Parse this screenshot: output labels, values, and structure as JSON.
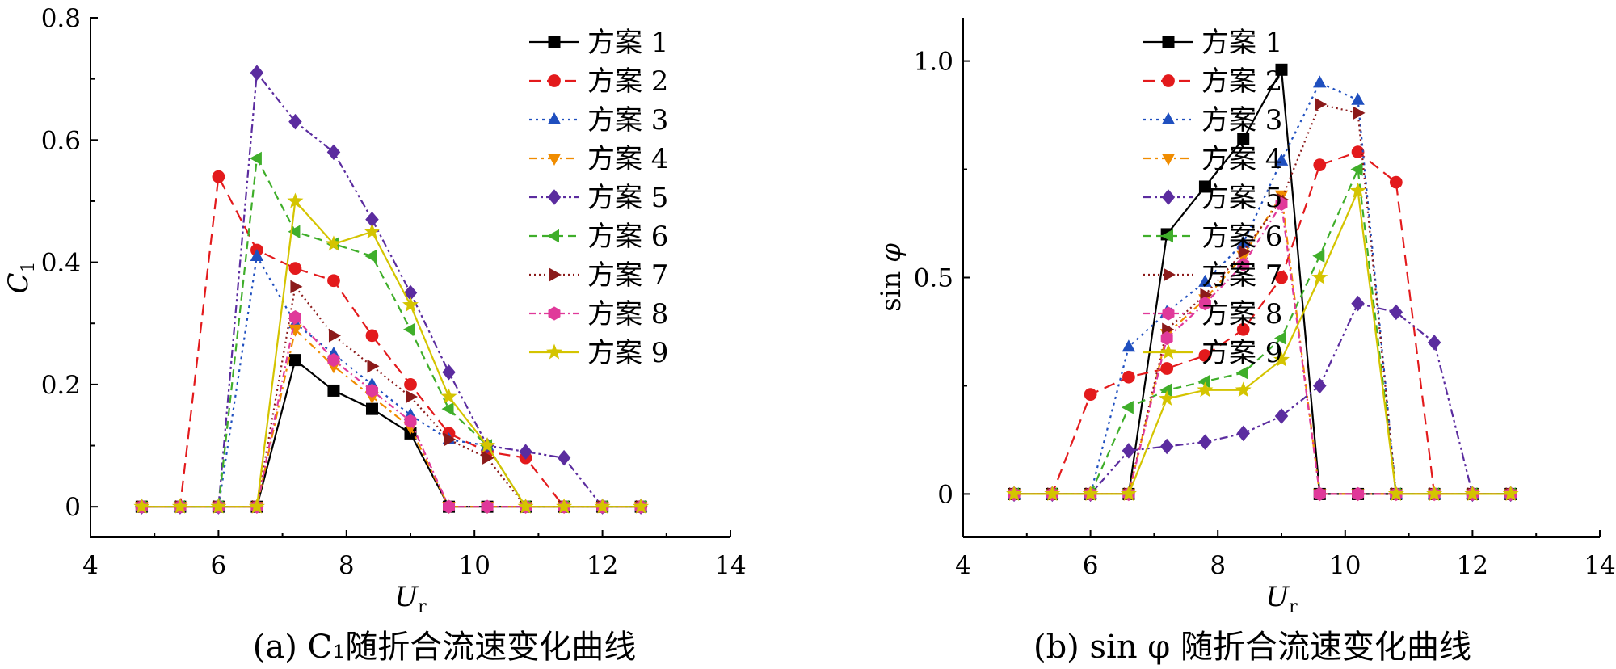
{
  "chart_data": [
    {
      "type": "line",
      "caption": "(a)  C₁随折合流速变化曲线",
      "xlabel": "Ur",
      "ylabel": "C1",
      "xlim": [
        4,
        14
      ],
      "ylim": [
        -0.05,
        0.8
      ],
      "xticks": [
        "4",
        "6",
        "8",
        "10",
        "12",
        "14"
      ],
      "yticks": [
        "0",
        "0.2",
        "0.4",
        "0.6",
        "0.8"
      ],
      "legend_position": "top-right",
      "x": [
        4.8,
        5.4,
        6.0,
        6.6,
        7.2,
        7.8,
        8.4,
        9.0,
        9.6,
        10.2,
        10.8,
        11.4,
        12.0,
        12.6
      ],
      "series": [
        {
          "name": "方案 1",
          "color": "#000000",
          "marker": "square",
          "dash": "",
          "values": [
            0,
            0,
            0,
            0,
            0.24,
            0.19,
            0.16,
            0.12,
            0,
            0,
            0,
            0,
            0,
            0
          ]
        },
        {
          "name": "方案 2",
          "color": "#e31a1c",
          "marker": "circle",
          "dash": "14,8",
          "values": [
            0,
            0,
            0.54,
            0.42,
            0.39,
            0.37,
            0.28,
            0.2,
            0.12,
            0.09,
            0.08,
            0,
            0,
            0
          ]
        },
        {
          "name": "方案 3",
          "color": "#1f4fbf",
          "marker": "triangle-up",
          "dash": "3,5",
          "values": [
            0,
            0,
            0,
            0.41,
            0.3,
            0.25,
            0.2,
            0.15,
            0.11,
            0.1,
            0,
            0,
            0,
            0
          ]
        },
        {
          "name": "方案 4",
          "color": "#f08c00",
          "marker": "triangle-down",
          "dash": "10,5,3,5",
          "values": [
            0,
            0,
            0,
            0,
            0.29,
            0.23,
            0.18,
            0.13,
            0,
            0,
            0,
            0,
            0,
            0
          ]
        },
        {
          "name": "方案 5",
          "color": "#5b2c9f",
          "marker": "diamond",
          "dash": "10,4,3,4,3,4",
          "values": [
            0,
            0,
            0,
            0.71,
            0.63,
            0.58,
            0.47,
            0.35,
            0.22,
            0.1,
            0.09,
            0.08,
            0,
            0
          ]
        },
        {
          "name": "方案 6",
          "color": "#3fae2a",
          "marker": "triangle-left",
          "dash": "10,6",
          "values": [
            0,
            0,
            0,
            0.57,
            0.45,
            0.43,
            0.41,
            0.29,
            0.16,
            0.1,
            0,
            0,
            0,
            0
          ]
        },
        {
          "name": "方案 7",
          "color": "#8b1a1a",
          "marker": "triangle-right",
          "dash": "2,4",
          "values": [
            0,
            0,
            0,
            0,
            0.36,
            0.28,
            0.23,
            0.18,
            0.11,
            0.08,
            0,
            0,
            0,
            0
          ]
        },
        {
          "name": "方案 8",
          "color": "#e0399a",
          "marker": "hexagon",
          "dash": "8,4,2,4",
          "values": [
            0,
            0,
            0,
            0,
            0.31,
            0.24,
            0.19,
            0.14,
            0,
            0,
            0,
            0,
            0,
            0
          ]
        },
        {
          "name": "方案 9",
          "color": "#d4c400",
          "marker": "star",
          "dash": "",
          "values": [
            0,
            0,
            0,
            0,
            0.5,
            0.43,
            0.45,
            0.33,
            0.18,
            0.1,
            0,
            0,
            0,
            0
          ]
        }
      ]
    },
    {
      "type": "line",
      "caption": "(b)  sin φ 随折合流速变化曲线",
      "xlabel": "Ur",
      "ylabel": "sin φ",
      "xlim": [
        4,
        14
      ],
      "ylim": [
        -0.1,
        1.1
      ],
      "xticks": [
        "4",
        "6",
        "8",
        "10",
        "12",
        "14"
      ],
      "yticks": [
        "0",
        "0.5",
        "1.0"
      ],
      "legend_position": "top-right",
      "x": [
        4.8,
        5.4,
        6.0,
        6.6,
        7.2,
        7.8,
        8.4,
        9.0,
        9.6,
        10.2,
        10.8,
        11.4,
        12.0,
        12.6
      ],
      "series": [
        {
          "name": "方案 1",
          "color": "#000000",
          "marker": "square",
          "dash": "",
          "values": [
            0,
            0,
            0,
            0,
            0.6,
            0.71,
            0.82,
            0.98,
            0,
            0,
            0,
            0,
            0,
            0
          ]
        },
        {
          "name": "方案 2",
          "color": "#e31a1c",
          "marker": "circle",
          "dash": "14,8",
          "values": [
            0,
            0,
            0.23,
            0.27,
            0.29,
            0.32,
            0.38,
            0.5,
            0.76,
            0.79,
            0.72,
            0,
            0,
            0
          ]
        },
        {
          "name": "方案 3",
          "color": "#1f4fbf",
          "marker": "triangle-up",
          "dash": "3,5",
          "values": [
            0,
            0,
            0,
            0.34,
            0.42,
            0.49,
            0.58,
            0.77,
            0.95,
            0.91,
            0,
            0,
            0,
            0
          ]
        },
        {
          "name": "方案 4",
          "color": "#f08c00",
          "marker": "triangle-down",
          "dash": "10,5,3,5",
          "values": [
            0,
            0,
            0,
            0,
            0.37,
            0.45,
            0.55,
            0.69,
            0,
            0,
            0,
            0,
            0,
            0
          ]
        },
        {
          "name": "方案 5",
          "color": "#5b2c9f",
          "marker": "diamond",
          "dash": "10,4,3,4,3,4",
          "values": [
            0,
            0,
            0,
            0.1,
            0.11,
            0.12,
            0.14,
            0.18,
            0.25,
            0.44,
            0.42,
            0.35,
            0,
            0
          ]
        },
        {
          "name": "方案 6",
          "color": "#3fae2a",
          "marker": "triangle-left",
          "dash": "10,6",
          "values": [
            0,
            0,
            0,
            0.2,
            0.24,
            0.26,
            0.28,
            0.36,
            0.55,
            0.75,
            0,
            0,
            0,
            0
          ]
        },
        {
          "name": "方案 7",
          "color": "#8b1a1a",
          "marker": "triangle-right",
          "dash": "2,4",
          "values": [
            0,
            0,
            0,
            0,
            0.38,
            0.46,
            0.56,
            0.68,
            0.9,
            0.88,
            0,
            0,
            0,
            0
          ]
        },
        {
          "name": "方案 8",
          "color": "#e0399a",
          "marker": "hexagon",
          "dash": "8,4,2,4",
          "values": [
            0,
            0,
            0,
            0,
            0.36,
            0.44,
            0.53,
            0.67,
            0,
            0,
            0,
            0,
            0,
            0
          ]
        },
        {
          "name": "方案 9",
          "color": "#d4c400",
          "marker": "star",
          "dash": "",
          "values": [
            0,
            0,
            0,
            0,
            0.22,
            0.24,
            0.24,
            0.31,
            0.5,
            0.7,
            0,
            0,
            0,
            0
          ]
        }
      ]
    }
  ]
}
